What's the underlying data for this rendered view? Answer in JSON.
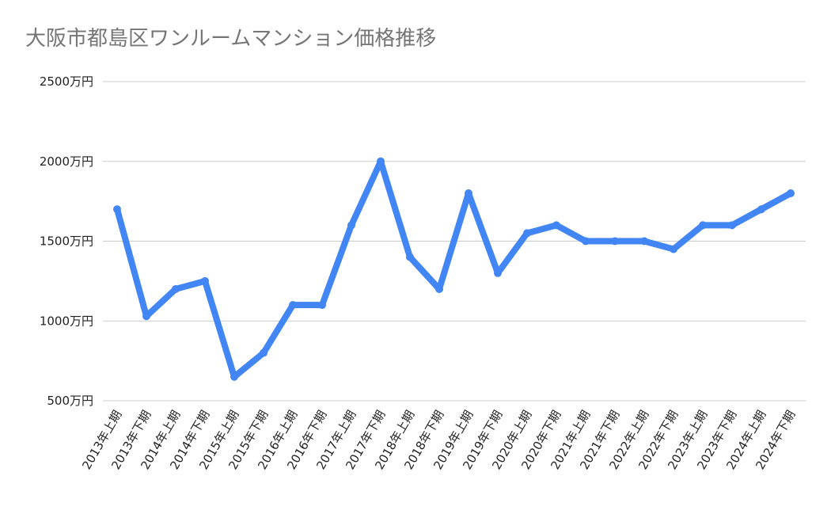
{
  "chart_data": {
    "type": "line",
    "title": "大阪市都島区ワンルームマンション価格推移",
    "xlabel": "",
    "ylabel": "",
    "ylim": [
      500,
      2500
    ],
    "yticks": [
      2500,
      2000,
      1500,
      1000,
      500
    ],
    "ytick_labels": [
      "2500万円",
      "2000万円",
      "1500万円",
      "1000万円",
      "500万円"
    ],
    "grid": true,
    "legend": "none",
    "categories": [
      "2013年上期",
      "2013年下期",
      "2014年上期",
      "2014年下期",
      "2015年上期",
      "2015年下期",
      "2016年上期",
      "2016年下期",
      "2017年上期",
      "2017年下期",
      "2018年上期",
      "2018年下期",
      "2019年上期",
      "2019年下期",
      "2020年上期",
      "2020年下期",
      "2021年上期",
      "2021年下期",
      "2022年上期",
      "2022年下期",
      "2023年上期",
      "2023年下期",
      "2024年上期",
      "2024年下期"
    ],
    "series": [
      {
        "color": "#4285f4",
        "values": [
          1700,
          1030,
          1200,
          1250,
          650,
          800,
          1100,
          1100,
          1600,
          2000,
          1400,
          1200,
          1800,
          1300,
          1550,
          1600,
          1500,
          1500,
          1500,
          1450,
          1600,
          1600,
          1700,
          1800
        ]
      }
    ]
  }
}
